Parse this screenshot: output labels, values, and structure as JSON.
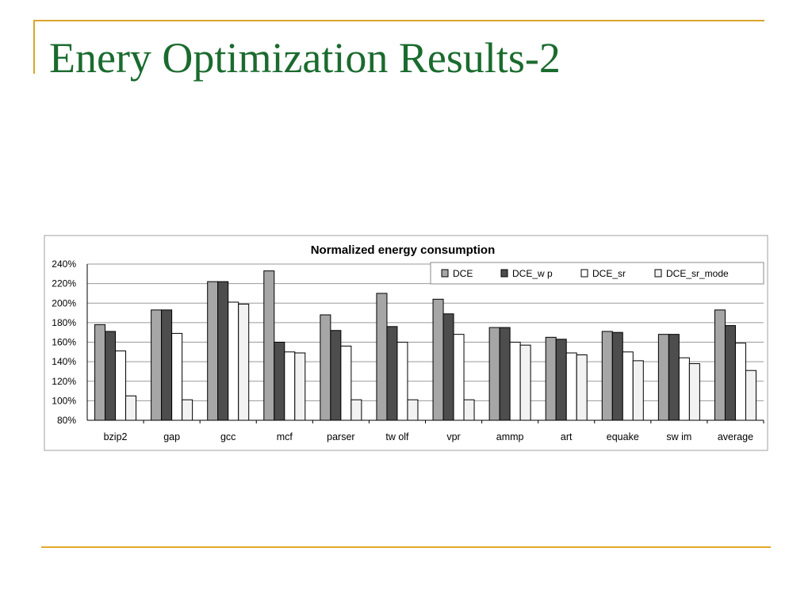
{
  "slide": {
    "title": "Enery Optimization Results-2",
    "colors": {
      "title": "#1a6b2e",
      "accent": "#d9a62a"
    }
  },
  "chart_data": {
    "type": "bar",
    "title": "Normalized energy consumption",
    "xlabel": "",
    "ylabel": "",
    "ylim": [
      80,
      240
    ],
    "y_ticks": [
      "80%",
      "100%",
      "120%",
      "140%",
      "160%",
      "180%",
      "200%",
      "220%",
      "240%"
    ],
    "y_unit": "%",
    "grid": true,
    "legend_position": "top-right",
    "categories": [
      "bzip2",
      "gap",
      "gcc",
      "mcf",
      "parser",
      "tw olf",
      "vpr",
      "ammp",
      "art",
      "equake",
      "sw im",
      "average"
    ],
    "series": [
      {
        "name": "DCE",
        "color": "#a6a6a6",
        "values": [
          178,
          193,
          222,
          233,
          188,
          210,
          204,
          175,
          165,
          171,
          168,
          193
        ]
      },
      {
        "name": "DCE_w p",
        "color": "#4d4d4d",
        "values": [
          171,
          193,
          222,
          160,
          172,
          176,
          189,
          175,
          163,
          170,
          168,
          177
        ]
      },
      {
        "name": "DCE_sr",
        "color": "#ffffff",
        "values": [
          151,
          169,
          201,
          150,
          156,
          160,
          168,
          160,
          149,
          150,
          144,
          159
        ]
      },
      {
        "name": "DCE_sr_mode",
        "color": "#f2f2f2",
        "values": [
          105,
          101,
          199,
          149,
          101,
          101,
          101,
          157,
          147,
          141,
          138,
          131
        ]
      }
    ]
  }
}
